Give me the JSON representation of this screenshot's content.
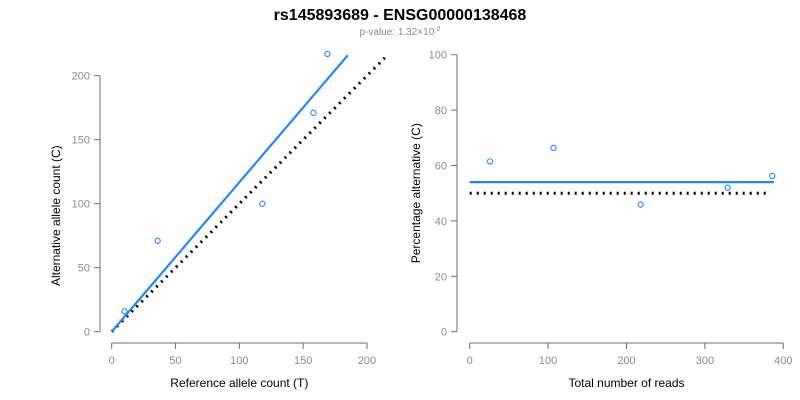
{
  "title": "rs145893689 - ENSG00000138468",
  "subtitle": {
    "prefix": "p-value: 1.32×10",
    "exponent": "-2"
  },
  "colors": {
    "points": "#1e88ff",
    "fit_line": "#1e88ff",
    "reference_line": "#000000",
    "axis": "#6e6e6e",
    "tick_labels": "#8a8a8a"
  },
  "chart_data": [
    {
      "type": "scatter",
      "xlabel": "Reference allele count (T)",
      "ylabel": "Alternative allele count (C)",
      "xlim": [
        0,
        200
      ],
      "ylim": [
        0,
        200
      ],
      "xticks": [
        0,
        50,
        100,
        150,
        200
      ],
      "yticks": [
        0,
        50,
        100,
        150,
        200
      ],
      "grid": false,
      "points": [
        {
          "x": 10,
          "y": 16
        },
        {
          "x": 36,
          "y": 71
        },
        {
          "x": 118,
          "y": 100
        },
        {
          "x": 158,
          "y": 171
        },
        {
          "x": 169,
          "y": 217
        }
      ],
      "fit_line": {
        "style": "solid",
        "from": [
          0,
          0
        ],
        "to": [
          185,
          216
        ]
      },
      "reference_line": {
        "style": "dotted",
        "from": [
          0,
          0
        ],
        "to": [
          214,
          214
        ]
      }
    },
    {
      "type": "scatter",
      "xlabel": "Total number of reads",
      "ylabel": "Percentage alternative (C)",
      "xlim": [
        0,
        400
      ],
      "ylim": [
        0,
        100
      ],
      "xticks": [
        0,
        100,
        200,
        300,
        400
      ],
      "yticks": [
        0,
        20,
        40,
        60,
        80,
        100
      ],
      "grid": false,
      "points": [
        {
          "x": 26,
          "y": 61.5
        },
        {
          "x": 107,
          "y": 66.4
        },
        {
          "x": 218,
          "y": 45.9
        },
        {
          "x": 329,
          "y": 52.0
        },
        {
          "x": 386,
          "y": 56.2
        }
      ],
      "fit_line": {
        "style": "solid",
        "from": [
          0,
          54
        ],
        "to": [
          388,
          54
        ]
      },
      "reference_line": {
        "style": "dotted",
        "from": [
          0,
          50
        ],
        "to": [
          380,
          50
        ]
      }
    }
  ]
}
